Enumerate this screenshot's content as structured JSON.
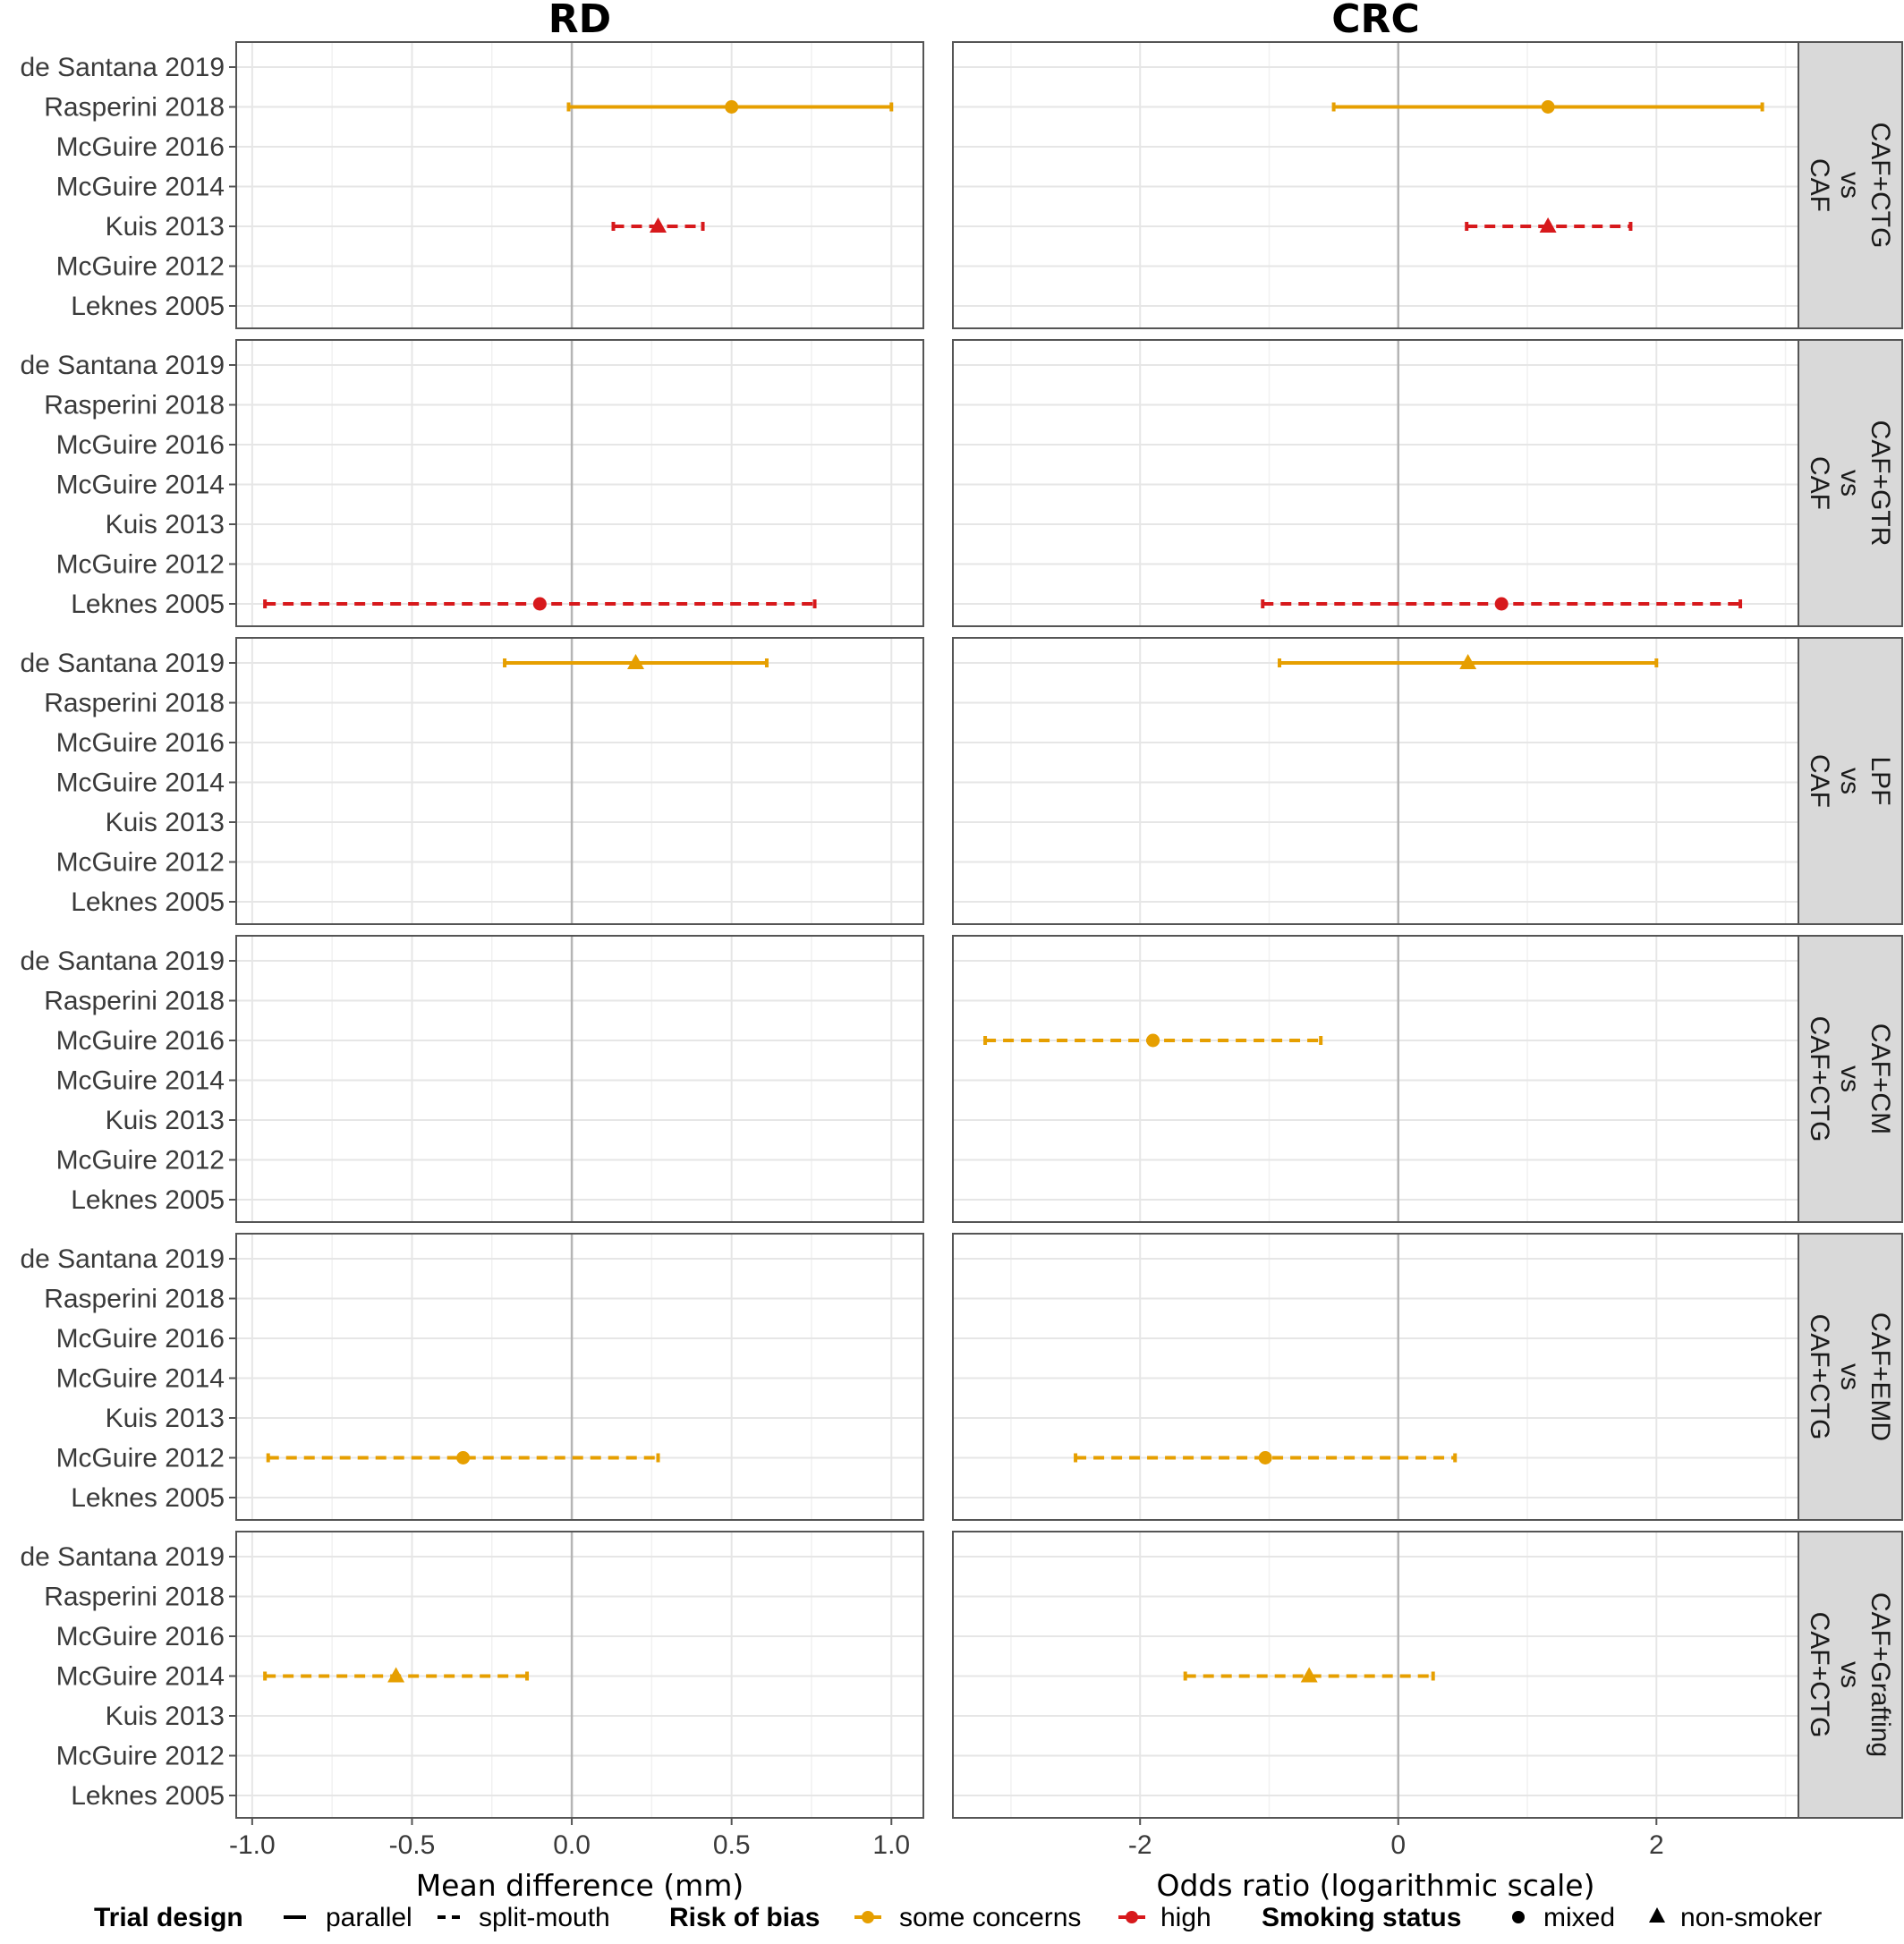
{
  "chart_data": {
    "type": "forest",
    "columns": [
      {
        "title": "RD",
        "xlabel": "Mean difference (mm)",
        "xlim": [
          -1.05,
          1.1
        ],
        "ticks": [
          -1.0,
          -0.5,
          0.0,
          0.5,
          1.0
        ],
        "tick_labels": [
          "-1.0",
          "-0.5",
          "0.0",
          "0.5",
          "1.0"
        ]
      },
      {
        "title": "CRC",
        "xlabel": "Odds ratio (logarithmic scale)",
        "xlim": [
          -3.45,
          3.1
        ],
        "ticks": [
          -2,
          0,
          2
        ],
        "tick_labels": [
          "-2",
          "0",
          "2"
        ]
      }
    ],
    "studies": [
      "de Santana 2019",
      "Rasperini 2018",
      "McGuire 2016",
      "McGuire 2014",
      "Kuis 2013",
      "McGuire 2012",
      "Leknes 2005"
    ],
    "comparisons": [
      {
        "label": [
          "CAF",
          "vs",
          "CAF+CTG"
        ]
      },
      {
        "label": [
          "CAF",
          "vs",
          "CAF+GTR"
        ]
      },
      {
        "label": [
          "CAF",
          "vs",
          "LPF"
        ]
      },
      {
        "label": [
          "CAF+CTG",
          "vs",
          "CAF+CM"
        ]
      },
      {
        "label": [
          "CAF+CTG",
          "vs",
          "CAF+EMD"
        ]
      },
      {
        "label": [
          "CAF+CTG",
          "vs",
          "CAF+Grafting"
        ]
      }
    ],
    "estimates": [
      {
        "comparison": 0,
        "column": 0,
        "study": "Rasperini 2018",
        "est": 0.5,
        "lo": -0.01,
        "hi": 1.0,
        "design": "parallel",
        "bias": "some concerns",
        "smoking": "mixed"
      },
      {
        "comparison": 0,
        "column": 0,
        "study": "Kuis 2013",
        "est": 0.27,
        "lo": 0.13,
        "hi": 0.41,
        "design": "split-mouth",
        "bias": "high",
        "smoking": "non-smoker"
      },
      {
        "comparison": 0,
        "column": 1,
        "study": "Rasperini 2018",
        "est": 1.16,
        "lo": -0.5,
        "hi": 2.82,
        "design": "parallel",
        "bias": "some concerns",
        "smoking": "mixed"
      },
      {
        "comparison": 0,
        "column": 1,
        "study": "Kuis 2013",
        "est": 1.16,
        "lo": 0.53,
        "hi": 1.8,
        "design": "split-mouth",
        "bias": "high",
        "smoking": "non-smoker"
      },
      {
        "comparison": 1,
        "column": 0,
        "study": "Leknes 2005",
        "est": -0.1,
        "lo": -0.96,
        "hi": 0.76,
        "design": "split-mouth",
        "bias": "high",
        "smoking": "mixed"
      },
      {
        "comparison": 1,
        "column": 1,
        "study": "Leknes 2005",
        "est": 0.8,
        "lo": -1.05,
        "hi": 2.65,
        "design": "split-mouth",
        "bias": "high",
        "smoking": "mixed"
      },
      {
        "comparison": 2,
        "column": 0,
        "study": "de Santana 2019",
        "est": 0.2,
        "lo": -0.21,
        "hi": 0.61,
        "design": "parallel",
        "bias": "some concerns",
        "smoking": "non-smoker"
      },
      {
        "comparison": 2,
        "column": 1,
        "study": "de Santana 2019",
        "est": 0.54,
        "lo": -0.92,
        "hi": 2.0,
        "design": "parallel",
        "bias": "some concerns",
        "smoking": "non-smoker"
      },
      {
        "comparison": 3,
        "column": 1,
        "study": "McGuire 2016",
        "est": -1.9,
        "lo": -3.2,
        "hi": -0.6,
        "design": "split-mouth",
        "bias": "some concerns",
        "smoking": "mixed"
      },
      {
        "comparison": 4,
        "column": 0,
        "study": "McGuire 2012",
        "est": -0.34,
        "lo": -0.95,
        "hi": 0.27,
        "design": "split-mouth",
        "bias": "some concerns",
        "smoking": "mixed"
      },
      {
        "comparison": 4,
        "column": 1,
        "study": "McGuire 2012",
        "est": -1.03,
        "lo": -2.5,
        "hi": 0.44,
        "design": "split-mouth",
        "bias": "some concerns",
        "smoking": "mixed"
      },
      {
        "comparison": 5,
        "column": 0,
        "study": "McGuire 2014",
        "est": -0.55,
        "lo": -0.96,
        "hi": -0.14,
        "design": "split-mouth",
        "bias": "some concerns",
        "smoking": "non-smoker"
      },
      {
        "comparison": 5,
        "column": 1,
        "study": "McGuire 2014",
        "est": -0.69,
        "lo": -1.65,
        "hi": 0.27,
        "design": "split-mouth",
        "bias": "some concerns",
        "smoking": "non-smoker"
      }
    ],
    "legend": {
      "position": "bottom",
      "groups": [
        {
          "title": "Trial design",
          "items": [
            "parallel",
            "split-mouth"
          ]
        },
        {
          "title": "Risk of bias",
          "items": [
            "some concerns",
            "high"
          ]
        },
        {
          "title": "Smoking status",
          "items": [
            "mixed",
            "non-smoker"
          ]
        }
      ]
    },
    "colors": {
      "some concerns": "#E69F00",
      "high": "#D7191C"
    },
    "grid": true
  }
}
